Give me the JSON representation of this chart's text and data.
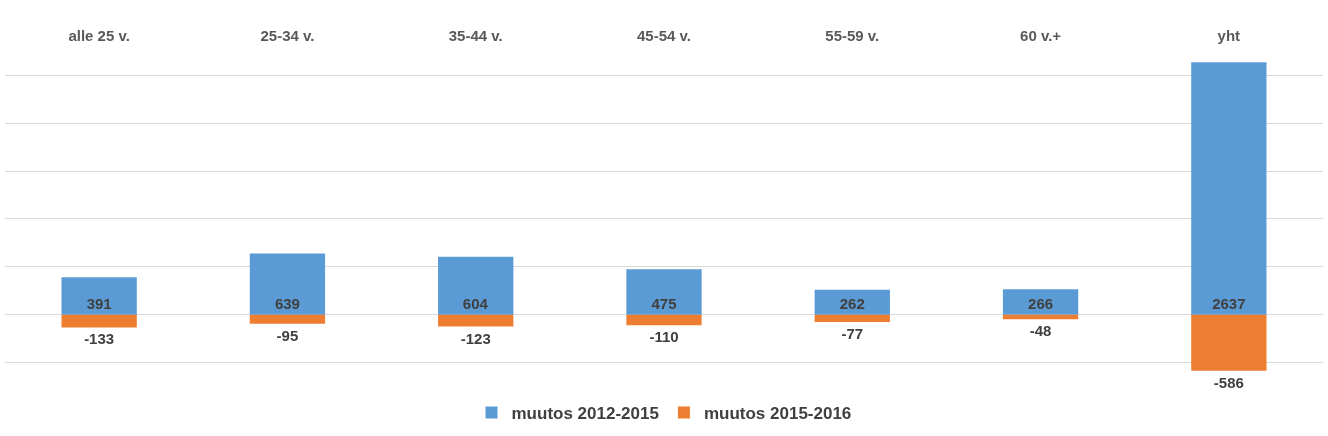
{
  "chart_data": {
    "type": "bar",
    "stacked": true,
    "categories": [
      "alle 25 v.",
      "25-34 v.",
      "35-44 v.",
      "45-54 v.",
      "55-59 v.",
      "60 v.+",
      "yht"
    ],
    "series": [
      {
        "name": "muutos 2012-2015",
        "color": "#5b9bd5",
        "values": [
          391,
          639,
          604,
          475,
          262,
          266,
          2637
        ]
      },
      {
        "name": "muutos 2015-2016",
        "color": "#ed7d31",
        "values": [
          -133,
          -95,
          -123,
          -110,
          -77,
          -48,
          -586
        ]
      }
    ],
    "grid": "y",
    "tick_labels": "x",
    "legend": "bottom",
    "data_labels": true
  }
}
